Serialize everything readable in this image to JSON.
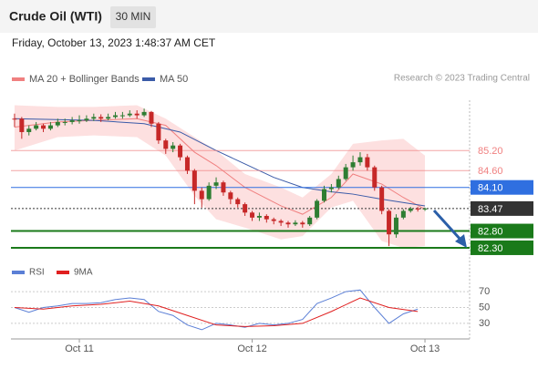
{
  "header": {
    "title": "Crude Oil (WTI)",
    "timeframe": "30 MIN",
    "timestamp": "Friday, October 13, 2023 1:48:37 AM CET"
  },
  "chart_data": [
    {
      "type": "candlestick",
      "credit": "Research © 2023 Trading Central",
      "xlim": [
        -0.5,
        63.2
      ],
      "ylim": [
        82.0,
        86.7
      ],
      "up_color": "#2e7d32",
      "down_color": "#c62828",
      "candles": {
        "close": [
          86.15,
          85.75,
          85.85,
          85.95,
          85.85,
          85.95,
          86.05,
          86.05,
          86.1,
          86.1,
          86.15,
          86.2,
          86.15,
          86.2,
          86.25,
          86.25,
          86.3,
          86.25,
          86.35,
          86.0,
          85.5,
          85.25,
          85.35,
          85.0,
          84.6,
          84.0,
          83.75,
          84.15,
          84.25,
          83.95,
          83.75,
          83.6,
          83.35,
          83.2,
          83.25,
          83.15,
          83.1,
          83.05,
          83.0,
          83.05,
          83.0,
          83.2,
          83.7,
          84.05,
          84.1,
          84.35,
          84.7,
          84.85,
          85.0,
          84.7,
          84.1,
          83.4,
          82.7,
          83.2,
          83.4,
          83.47,
          83.45,
          83.47
        ],
        "high": [
          86.3,
          86.2,
          85.95,
          86.05,
          86.0,
          86.05,
          86.15,
          86.15,
          86.2,
          86.25,
          86.25,
          86.3,
          86.28,
          86.3,
          86.35,
          86.35,
          86.4,
          86.4,
          86.45,
          86.38,
          86.05,
          85.55,
          85.45,
          85.4,
          85.05,
          84.65,
          84.1,
          84.25,
          84.4,
          84.3,
          84.0,
          83.8,
          83.65,
          83.4,
          83.35,
          83.3,
          83.2,
          83.15,
          83.1,
          83.12,
          83.1,
          83.25,
          83.75,
          84.15,
          84.2,
          84.45,
          84.8,
          85.05,
          85.15,
          85.1,
          84.75,
          84.15,
          83.45,
          83.3,
          83.45,
          83.52,
          83.52,
          83.5
        ],
        "low": [
          85.9,
          85.55,
          85.65,
          85.8,
          85.75,
          85.8,
          85.9,
          85.95,
          85.98,
          86.0,
          86.05,
          86.08,
          86.05,
          86.1,
          86.15,
          86.15,
          86.2,
          86.15,
          86.2,
          85.9,
          85.4,
          85.1,
          85.15,
          84.9,
          84.5,
          83.6,
          83.5,
          83.7,
          84.05,
          83.85,
          83.6,
          83.5,
          83.25,
          83.1,
          83.1,
          83.05,
          83.0,
          82.95,
          82.9,
          82.95,
          82.9,
          82.95,
          83.15,
          83.65,
          83.95,
          84.05,
          84.3,
          84.6,
          84.75,
          84.6,
          84.0,
          83.3,
          82.35,
          82.6,
          83.15,
          83.35,
          83.38,
          83.4
        ]
      },
      "overlays": [
        {
          "name": "MA 20 + Bollinger Bands",
          "color": "#f08080",
          "band_color": "#fde0e0",
          "x": [
            0,
            6,
            11,
            17,
            21,
            25,
            28,
            32,
            37,
            40,
            44,
            47,
            51,
            54,
            57
          ],
          "upper": [
            86.55,
            86.5,
            86.5,
            86.55,
            86.15,
            85.6,
            85.2,
            84.5,
            84.1,
            83.8,
            84.5,
            85.4,
            85.5,
            85.55,
            85.05
          ],
          "middle": [
            85.9,
            86.05,
            86.1,
            86.15,
            85.95,
            85.15,
            84.75,
            84.1,
            83.55,
            83.3,
            83.8,
            84.5,
            84.2,
            83.8,
            83.45
          ],
          "lower": [
            85.2,
            85.6,
            85.65,
            85.6,
            85.05,
            83.85,
            83.15,
            82.9,
            82.55,
            82.65,
            83.5,
            83.7,
            82.5,
            82.3,
            82.35
          ]
        },
        {
          "name": "MA 50",
          "color": "#3b5ba8",
          "x": [
            0,
            11,
            18,
            23,
            28,
            32,
            36,
            40,
            44,
            47,
            51,
            57
          ],
          "values": [
            86.15,
            86.1,
            86.0,
            85.75,
            85.2,
            84.8,
            84.4,
            84.1,
            83.97,
            83.9,
            83.75,
            83.55
          ]
        }
      ],
      "levels": [
        {
          "value": 85.2,
          "label": "85.20",
          "color": "#f08080",
          "box": false,
          "width": 1,
          "dashed": false
        },
        {
          "value": 84.6,
          "label": "84.60",
          "color": "#f08080",
          "box": false,
          "width": 1,
          "dashed": false
        },
        {
          "value": 84.1,
          "label": "84.10",
          "color": "#2f6fe0",
          "box": true,
          "width": 1,
          "dashed": false
        },
        {
          "value": 83.47,
          "label": "83.47",
          "color": "#333333",
          "box": true,
          "width": 1,
          "dashed": true
        },
        {
          "value": 82.8,
          "label": "82.80",
          "color": "#1a7a1a",
          "box": true,
          "width": 2,
          "dashed": false
        },
        {
          "value": 82.3,
          "label": "82.30",
          "color": "#1a7a1a",
          "box": true,
          "width": 2,
          "dashed": false
        }
      ]
    },
    {
      "type": "line",
      "xlim": [
        -0.5,
        63.2
      ],
      "ylim": [
        15,
        85
      ],
      "yticks": [
        30,
        50,
        70
      ],
      "grid": true,
      "xticks": [
        {
          "value": 9,
          "label": "Oct 11"
        },
        {
          "value": 33,
          "label": "Oct 12"
        },
        {
          "value": 57,
          "label": "Oct 13"
        }
      ],
      "series": [
        {
          "name": "RSI",
          "color": "#5b7fd6",
          "x": [
            0,
            2,
            4,
            6,
            8,
            10,
            12,
            14,
            16,
            18,
            20,
            22,
            24,
            26,
            28,
            30,
            32,
            34,
            36,
            38,
            40,
            42,
            44,
            46,
            48,
            50,
            52,
            54,
            56
          ],
          "values": [
            50,
            44,
            50,
            52,
            55,
            55,
            56,
            60,
            62,
            60,
            45,
            40,
            28,
            22,
            30,
            28,
            25,
            30,
            28,
            30,
            35,
            55,
            62,
            70,
            72,
            50,
            30,
            42,
            48
          ]
        },
        {
          "name": "9MA",
          "color": "#e02020",
          "x": [
            0,
            4,
            8,
            12,
            16,
            20,
            24,
            28,
            32,
            36,
            40,
            44,
            48,
            52,
            56
          ],
          "values": [
            50,
            48,
            52,
            54,
            58,
            52,
            40,
            28,
            26,
            27,
            30,
            45,
            62,
            50,
            45
          ]
        }
      ]
    }
  ]
}
